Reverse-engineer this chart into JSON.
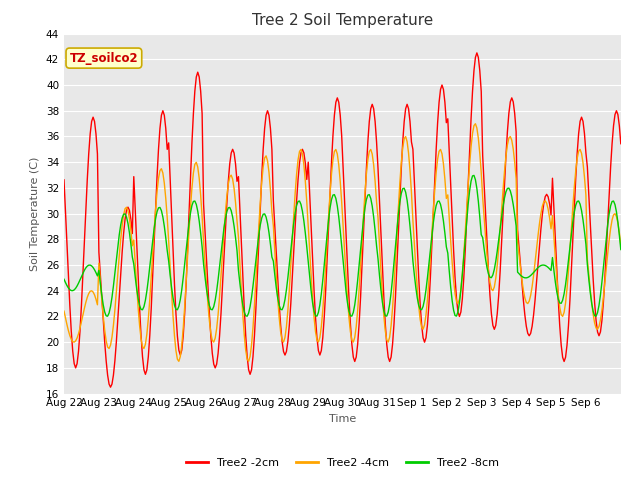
{
  "title": "Tree 2 Soil Temperature",
  "xlabel": "Time",
  "ylabel": "Soil Temperature (C)",
  "ylim": [
    16,
    44
  ],
  "yticks": [
    16,
    18,
    20,
    22,
    24,
    26,
    28,
    30,
    32,
    34,
    36,
    38,
    40,
    42,
    44
  ],
  "xtick_labels": [
    "Aug 22",
    "Aug 23",
    "Aug 24",
    "Aug 25",
    "Aug 26",
    "Aug 27",
    "Aug 28",
    "Aug 29",
    "Aug 30",
    "Aug 31",
    "Sep 1",
    "Sep 2",
    "Sep 3",
    "Sep 4",
    "Sep 5",
    "Sep 6"
  ],
  "series_colors": [
    "#ff0000",
    "#ffa500",
    "#00cc00"
  ],
  "series_labels": [
    "Tree2 -2cm",
    "Tree2 -4cm",
    "Tree2 -8cm"
  ],
  "annotation_text": "TZ_soilco2",
  "annotation_bg": "#ffffcc",
  "annotation_border": "#ccaa00",
  "fig_bg_color": "#ffffff",
  "plot_bg_color": "#e8e8e8",
  "grid_color": "#ffffff",
  "line_width": 1.0,
  "title_fontsize": 11,
  "axis_label_fontsize": 8,
  "tick_fontsize": 7.5,
  "legend_fontsize": 8
}
